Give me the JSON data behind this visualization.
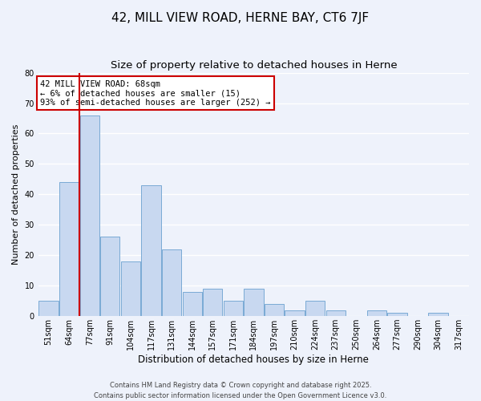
{
  "title": "42, MILL VIEW ROAD, HERNE BAY, CT6 7JF",
  "subtitle": "Size of property relative to detached houses in Herne",
  "xlabel": "Distribution of detached houses by size in Herne",
  "ylabel": "Number of detached properties",
  "bar_labels": [
    "51sqm",
    "64sqm",
    "77sqm",
    "91sqm",
    "104sqm",
    "117sqm",
    "131sqm",
    "144sqm",
    "157sqm",
    "171sqm",
    "184sqm",
    "197sqm",
    "210sqm",
    "224sqm",
    "237sqm",
    "250sqm",
    "264sqm",
    "277sqm",
    "290sqm",
    "304sqm",
    "317sqm"
  ],
  "bar_heights": [
    5,
    44,
    66,
    26,
    18,
    43,
    22,
    8,
    9,
    5,
    9,
    4,
    2,
    5,
    2,
    0,
    2,
    1,
    0,
    1,
    0
  ],
  "bar_color": "#c8d8f0",
  "bar_edge_color": "#7aaad4",
  "vline_color": "#cc0000",
  "vline_pos": 1.5,
  "ylim": [
    0,
    80
  ],
  "yticks": [
    0,
    10,
    20,
    30,
    40,
    50,
    60,
    70,
    80
  ],
  "annotation_title": "42 MILL VIEW ROAD: 68sqm",
  "annotation_line1": "← 6% of detached houses are smaller (15)",
  "annotation_line2": "93% of semi-detached houses are larger (252) →",
  "annotation_box_color": "#ffffff",
  "annotation_box_edge": "#cc0000",
  "footer_line1": "Contains HM Land Registry data © Crown copyright and database right 2025.",
  "footer_line2": "Contains public sector information licensed under the Open Government Licence v3.0.",
  "background_color": "#eef2fb",
  "grid_color": "#ffffff",
  "title_fontsize": 11,
  "subtitle_fontsize": 9.5,
  "ylabel_fontsize": 8,
  "xlabel_fontsize": 8.5,
  "tick_fontsize": 7,
  "footer_fontsize": 6,
  "ann_fontsize": 7.5
}
